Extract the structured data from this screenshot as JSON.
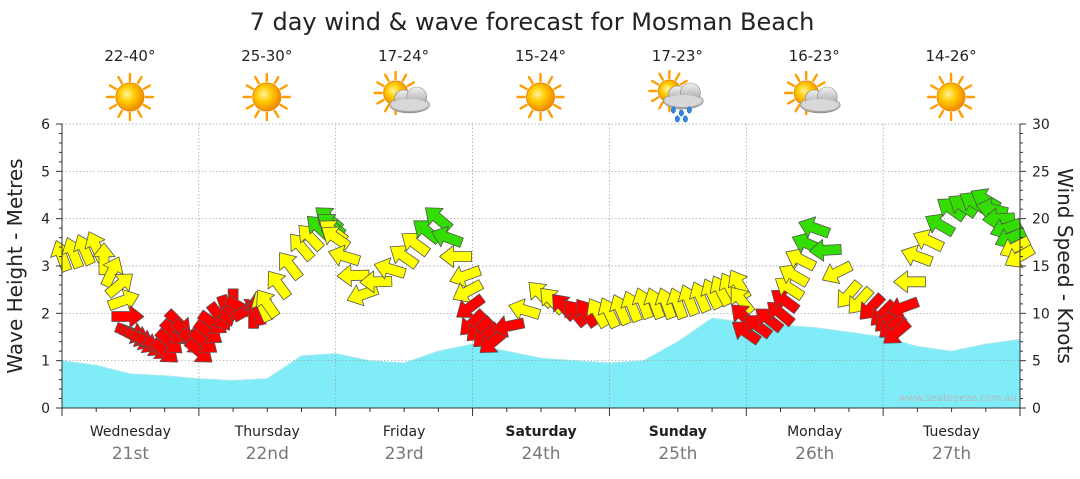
{
  "chart_data": {
    "type": "area",
    "title": "7 day wind & wave forecast for Mosman Beach",
    "ylabel_left": "Wave Height - Metres",
    "ylabel_right": "Wind Speed - Knots",
    "ylim_left": [
      0,
      6
    ],
    "ylim_right": [
      0,
      30
    ],
    "yticks_left": [
      "0",
      "1",
      "2",
      "3",
      "4",
      "5",
      "6"
    ],
    "yticks_right": [
      "0",
      "5",
      "10",
      "15",
      "20",
      "25",
      "30"
    ],
    "grid": true,
    "watermark": "www.seabreeze.com.au",
    "days": [
      {
        "name": "Wednesday",
        "date": "21st",
        "bold": false,
        "temp": "22-40°",
        "weather": "sunny"
      },
      {
        "name": "Thursday",
        "date": "22nd",
        "bold": false,
        "temp": "25-30°",
        "weather": "sunny"
      },
      {
        "name": "Friday",
        "date": "23rd",
        "bold": false,
        "temp": "17-24°",
        "weather": "partly-cloudy"
      },
      {
        "name": "Saturday",
        "date": "24th",
        "bold": true,
        "temp": "15-24°",
        "weather": "sunny"
      },
      {
        "name": "Sunday",
        "date": "25th",
        "bold": true,
        "temp": "17-23°",
        "weather": "sun-showers"
      },
      {
        "name": "Monday",
        "date": "26th",
        "bold": false,
        "temp": "16-23°",
        "weather": "partly-cloudy"
      },
      {
        "name": "Tuesday",
        "date": "27th",
        "bold": false,
        "temp": "14-26°",
        "weather": "sunny"
      }
    ],
    "colors": {
      "wave_fill": "#7fecf8",
      "wave_stroke": "#a7e8f0",
      "arrow_light": "#ffff00",
      "arrow_moderate": "#33dd00",
      "arrow_strong": "#ff0000",
      "arrow_outline": "#555555",
      "grid": "#9a9a9a",
      "watermark": "#b9b9b9"
    },
    "wave_series": {
      "name": "Wave Height",
      "x_days": [
        0,
        0.25,
        0.5,
        0.75,
        1.0,
        1.25,
        1.5,
        1.75,
        2.0,
        2.25,
        2.5,
        2.75,
        3.0,
        3.25,
        3.5,
        3.75,
        4.0,
        4.25,
        4.5,
        4.75,
        5.0,
        5.25,
        5.5,
        5.75,
        6.0,
        6.25,
        6.5,
        6.75,
        7.0
      ],
      "values": [
        1.0,
        0.9,
        0.72,
        0.68,
        0.62,
        0.58,
        0.62,
        1.1,
        1.15,
        1.0,
        0.95,
        1.2,
        1.35,
        1.2,
        1.05,
        1.0,
        0.95,
        1.0,
        1.4,
        1.9,
        1.8,
        1.75,
        1.7,
        1.6,
        1.5,
        1.3,
        1.2,
        1.35,
        1.45
      ]
    },
    "wind_series": {
      "name": "Wind",
      "x_days": [
        0,
        0.25,
        0.42,
        0.5,
        0.6,
        0.75,
        0.85,
        1.0,
        1.1,
        1.25,
        1.4,
        1.5,
        1.75,
        1.95,
        2.0,
        2.2,
        2.5,
        2.75,
        2.95,
        3.0,
        3.15,
        3.5,
        3.75,
        4.0,
        4.25,
        4.5,
        4.75,
        4.95,
        5.0,
        5.25,
        5.35,
        5.5,
        5.75,
        6.0,
        6.1,
        6.25,
        6.5,
        6.75,
        6.9,
        7.0
      ],
      "knots": [
        16,
        17,
        13,
        8,
        7,
        6,
        9,
        6,
        9,
        11,
        10,
        11,
        17,
        20,
        18,
        12,
        16,
        20,
        14,
        9,
        7,
        12,
        10,
        10,
        11,
        11,
        12,
        13,
        8,
        10,
        14,
        19,
        12,
        10,
        8,
        16,
        21,
        22,
        19,
        16
      ],
      "colors": [
        "light",
        "light",
        "light",
        "strong",
        "strong",
        "strong",
        "strong",
        "strong",
        "strong",
        "strong",
        "strong",
        "light",
        "light",
        "moderate",
        "light",
        "light",
        "light",
        "moderate",
        "light",
        "strong",
        "strong",
        "light",
        "strong",
        "light",
        "light",
        "light",
        "light",
        "light",
        "strong",
        "strong",
        "light",
        "moderate",
        "light",
        "strong",
        "strong",
        "light",
        "moderate",
        "moderate",
        "moderate",
        "light"
      ],
      "direction_deg": [
        250,
        245,
        320,
        20,
        30,
        40,
        45,
        40,
        35,
        90,
        270,
        235,
        230,
        220,
        215,
        160,
        215,
        220,
        160,
        135,
        140,
        225,
        230,
        245,
        250,
        250,
        245,
        240,
        215,
        220,
        210,
        200,
        130,
        135,
        140,
        200,
        215,
        210,
        160,
        150
      ]
    }
  }
}
